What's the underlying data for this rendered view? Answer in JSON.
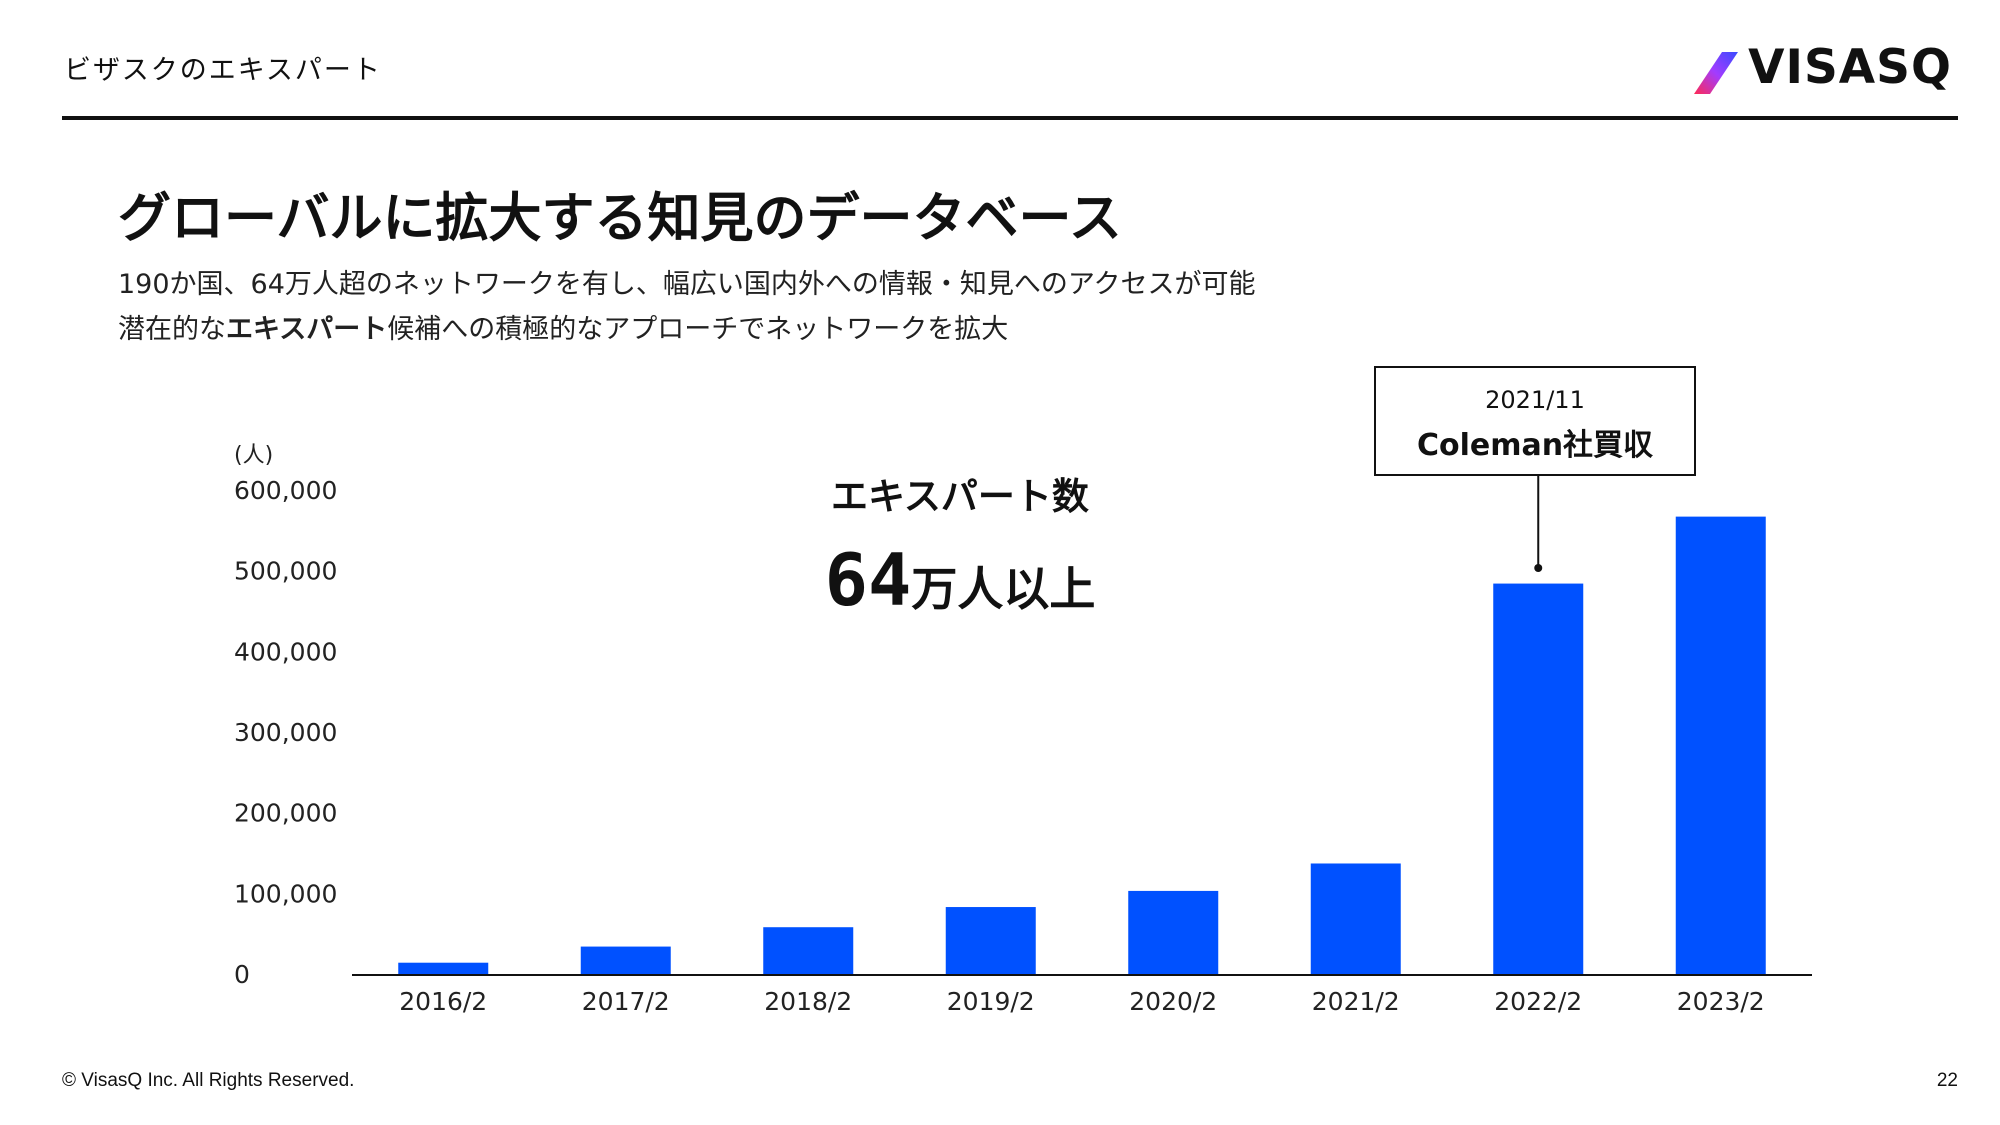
{
  "header": {
    "section_title": "ビザスクのエキスパート",
    "logo_text": "VISASQ"
  },
  "slide": {
    "title": "グローバルに拡大する知見のデータベース",
    "subtitle_line1": "190か国、64万人超のネットワークを有し、幅広い国内外への情報・知見へのアクセスが可能",
    "subtitle_line2_pre": "潜在的な",
    "subtitle_line2_bold": "エキスパート",
    "subtitle_line2_post": "候補への積極的なアプローチでネットワークを拡大"
  },
  "highlight": {
    "label": "エキスパート数",
    "value": "64",
    "suffix": "万人以上"
  },
  "callout": {
    "date": "2021/11",
    "text": "Coleman社買収"
  },
  "chart_data": {
    "type": "bar",
    "categories": [
      "2016/2",
      "2017/2",
      "2018/2",
      "2019/2",
      "2020/2",
      "2021/2",
      "2022/2",
      "2023/2"
    ],
    "values": [
      14000,
      34000,
      58000,
      83000,
      103000,
      137000,
      484000,
      567000
    ],
    "ylabel": "(人)",
    "ylim": [
      0,
      600000
    ],
    "yticks": [
      0,
      100000,
      200000,
      300000,
      400000,
      500000,
      600000
    ],
    "ytick_labels": [
      "0",
      "100,000",
      "200,000",
      "300,000",
      "400,000",
      "500,000",
      "600,000"
    ],
    "bar_color": "#0051ff",
    "grid": false,
    "legend": "none"
  },
  "footer": {
    "copyright": "© VisasQ Inc. All Rights Reserved.",
    "page_number": "22"
  },
  "colors": {
    "bar": "#0051ff",
    "logo_gradient_start": "#ff2a55",
    "logo_gradient_end": "#3a4bff"
  }
}
